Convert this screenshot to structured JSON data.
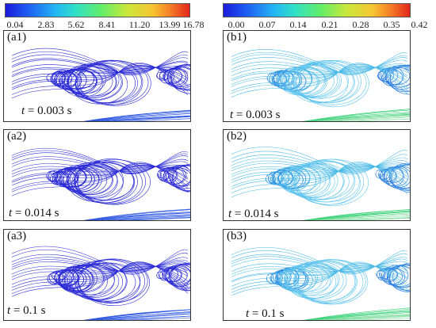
{
  "colorbars": {
    "a": {
      "ticks": [
        "0.04",
        "2.83",
        "5.62",
        "8.41",
        "11.20",
        "13.99",
        "16.78"
      ]
    },
    "b": {
      "ticks": [
        "0.00",
        "0.07",
        "0.14",
        "0.21",
        "0.28",
        "0.35",
        "0.42"
      ]
    }
  },
  "panels": [
    {
      "label": "(a1)",
      "t_var": "t",
      "t_value": "= 0.003 s"
    },
    {
      "label": "(a2)",
      "t_var": "t",
      "t_value": "= 0.014 s"
    },
    {
      "label": "(a3)",
      "t_var": "t",
      "t_value": "= 0.1 s"
    },
    {
      "label": "(b1)",
      "t_var": "t",
      "t_value": "= 0.003 s"
    },
    {
      "label": "(b2)",
      "t_var": "t",
      "t_value": "= 0.014 s"
    },
    {
      "label": "(b3)",
      "t_var": "t",
      "t_value": "= 0.1 s"
    }
  ],
  "colors": {
    "column_a": "#2a2ad6",
    "column_b_low": "#3fb2e8",
    "column_b_high": "#4fd26a"
  }
}
